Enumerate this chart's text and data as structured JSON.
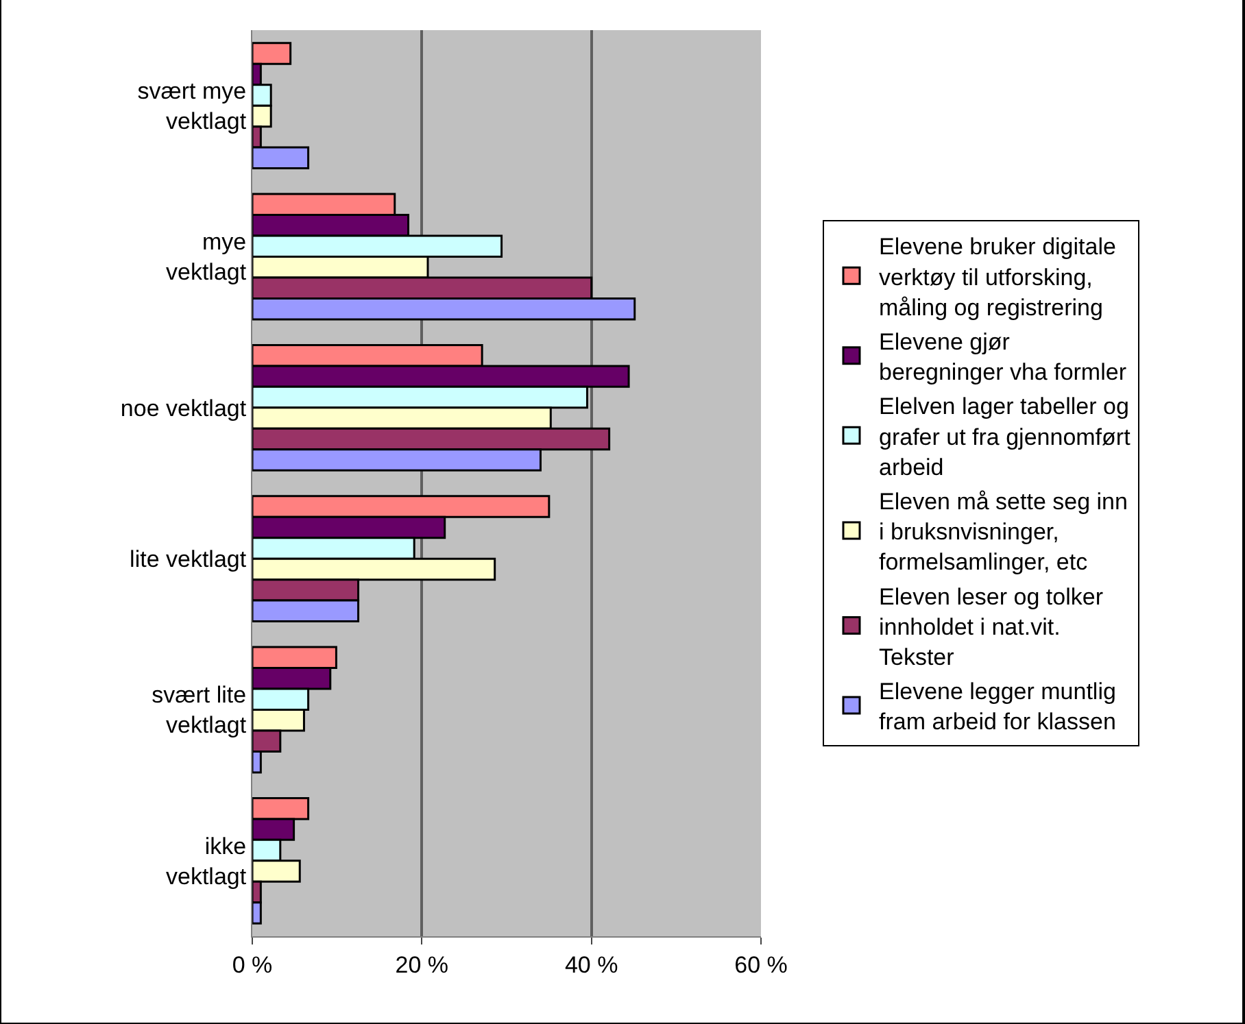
{
  "chart_data": {
    "type": "bar",
    "orientation": "horizontal",
    "categories": [
      "svært mye\nvektlagt",
      "mye\nvektlagt",
      "noe vektlagt",
      "lite vektlagt",
      "svært lite\nvektlagt",
      "ikke\nvektlagt"
    ],
    "series": [
      {
        "name": "Elevene bruker digitale\nverktøy til utforsking,\nmåling og registrering",
        "color": "#ff8080",
        "values": [
          4.5,
          16.8,
          27.1,
          35.0,
          9.9,
          6.6
        ]
      },
      {
        "name": "Elevene gjør\nberegninger vha formler",
        "color": "#660066",
        "values": [
          1.0,
          18.4,
          44.4,
          22.7,
          9.2,
          4.9
        ]
      },
      {
        "name": "Elelven lager tabeller og\ngrafer ut fra gjennomført\narbeid",
        "color": "#ccffff",
        "values": [
          2.2,
          29.4,
          39.5,
          19.1,
          6.6,
          3.3
        ]
      },
      {
        "name": "Eleven må sette seg inn\ni bruksnvisninger,\nformelsamlinger, etc",
        "color": "#ffffcc",
        "values": [
          2.2,
          20.7,
          35.2,
          28.6,
          6.1,
          5.6
        ]
      },
      {
        "name": "Eleven leser og tolker\ninnholdet i nat.vit.\nTekster",
        "color": "#993366",
        "values": [
          1.0,
          40.0,
          42.1,
          12.5,
          3.3,
          1.0
        ]
      },
      {
        "name": "Elevene legger muntlig\nfram arbeid for klassen",
        "color": "#9999ff",
        "values": [
          6.6,
          45.1,
          34.0,
          12.5,
          1.0,
          1.0
        ]
      }
    ],
    "xlim": [
      0,
      60
    ],
    "xticks": [
      {
        "value": 0,
        "label": "0 %"
      },
      {
        "value": 20,
        "label": "20 %"
      },
      {
        "value": 40,
        "label": "40 %"
      },
      {
        "value": 60,
        "label": "60 %"
      }
    ],
    "grid": "x",
    "legend": "right"
  }
}
